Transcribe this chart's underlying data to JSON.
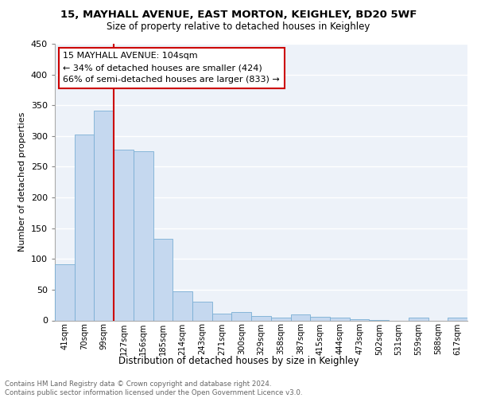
{
  "title1": "15, MAYHALL AVENUE, EAST MORTON, KEIGHLEY, BD20 5WF",
  "title2": "Size of property relative to detached houses in Keighley",
  "xlabel": "Distribution of detached houses by size in Keighley",
  "ylabel": "Number of detached properties",
  "footer": "Contains HM Land Registry data © Crown copyright and database right 2024.\nContains public sector information licensed under the Open Government Licence v3.0.",
  "categories": [
    "41sqm",
    "70sqm",
    "99sqm",
    "127sqm",
    "156sqm",
    "185sqm",
    "214sqm",
    "243sqm",
    "271sqm",
    "300sqm",
    "329sqm",
    "358sqm",
    "387sqm",
    "415sqm",
    "444sqm",
    "473sqm",
    "502sqm",
    "531sqm",
    "559sqm",
    "588sqm",
    "617sqm"
  ],
  "values": [
    91,
    303,
    341,
    278,
    275,
    133,
    47,
    31,
    11,
    13,
    7,
    5,
    10,
    6,
    4,
    2,
    1,
    0,
    5,
    0,
    4
  ],
  "bar_color": "#c5d8ef",
  "bar_edge_color": "#7aafd4",
  "annotation_title": "15 MAYHALL AVENUE: 104sqm",
  "annotation_line1": "← 34% of detached houses are smaller (424)",
  "annotation_line2": "66% of semi-detached houses are larger (833) →",
  "annotation_box_color": "#ffffff",
  "annotation_box_edge": "#cc0000",
  "vline_color": "#cc0000",
  "ylim": [
    0,
    450
  ],
  "yticks": [
    0,
    50,
    100,
    150,
    200,
    250,
    300,
    350,
    400,
    450
  ],
  "bg_color": "#edf2f9",
  "grid_color": "#ffffff",
  "title1_fontsize": 9.5,
  "title2_fontsize": 8.5
}
